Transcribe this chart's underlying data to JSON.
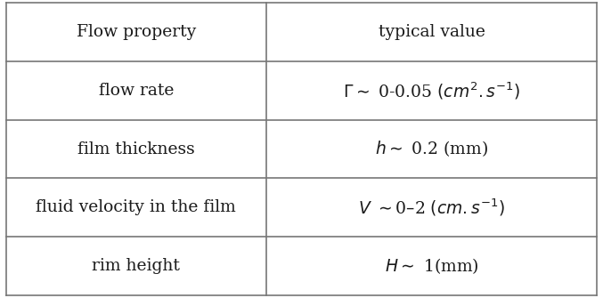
{
  "col1_header": "Flow property",
  "col2_header": "typical value",
  "col_split": 0.44,
  "line_color": "#777777",
  "text_color": "#1a1a1a",
  "font_size": 13.5,
  "header_font_size": 13.5,
  "row_col1": [
    "flow rate",
    "film thickness",
    "fluid velocity in the film",
    "rim height"
  ],
  "row_col2": [
    "$\\Gamma \\sim$ 0-0.05 $(cm^2.s^{-1})$",
    "$h \\sim$ 0.2 (mm)",
    "$V$ $\\sim$0–2 $(cm.s^{-1})$",
    "$H \\sim$ 1(mm)"
  ]
}
